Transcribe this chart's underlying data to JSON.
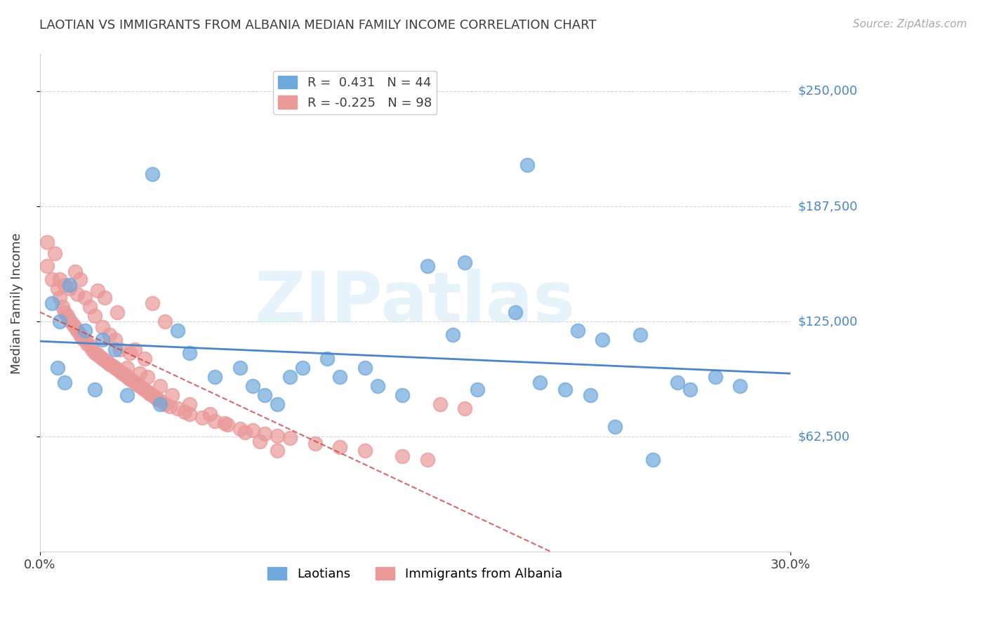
{
  "title": "LAOTIAN VS IMMIGRANTS FROM ALBANIA MEDIAN FAMILY INCOME CORRELATION CHART",
  "source": "Source: ZipAtlas.com",
  "xlabel": "",
  "ylabel": "Median Family Income",
  "xlim": [
    0.0,
    0.3
  ],
  "ylim": [
    0,
    270000
  ],
  "yticks": [
    62500,
    125000,
    187500,
    250000
  ],
  "ytick_labels": [
    "$62,500",
    "$125,000",
    "$187,500",
    "$250,000"
  ],
  "xticks": [
    0.0,
    0.3
  ],
  "xtick_labels": [
    "0.0%",
    "30.0%"
  ],
  "watermark": "ZIPatlas",
  "legend_blue_r": "0.431",
  "legend_blue_n": "44",
  "legend_pink_r": "-0.225",
  "legend_pink_n": "98",
  "blue_color": "#6fa8dc",
  "pink_color": "#ea9999",
  "trend_blue_color": "#4a86c8",
  "trend_pink_color": "#cc4444",
  "blue_scatter_x": [
    0.045,
    0.195,
    0.005,
    0.012,
    0.008,
    0.018,
    0.025,
    0.03,
    0.06,
    0.08,
    0.1,
    0.115,
    0.13,
    0.155,
    0.17,
    0.19,
    0.215,
    0.24,
    0.255,
    0.26,
    0.27,
    0.28,
    0.225,
    0.165,
    0.01,
    0.022,
    0.035,
    0.048,
    0.055,
    0.07,
    0.085,
    0.09,
    0.095,
    0.105,
    0.12,
    0.135,
    0.145,
    0.175,
    0.2,
    0.21,
    0.22,
    0.23,
    0.245,
    0.007
  ],
  "blue_scatter_y": [
    205000,
    210000,
    135000,
    145000,
    125000,
    120000,
    115000,
    110000,
    108000,
    100000,
    95000,
    105000,
    100000,
    155000,
    157000,
    130000,
    120000,
    118000,
    92000,
    88000,
    95000,
    90000,
    115000,
    118000,
    92000,
    88000,
    85000,
    80000,
    120000,
    95000,
    90000,
    85000,
    80000,
    100000,
    95000,
    90000,
    85000,
    88000,
    92000,
    88000,
    85000,
    68000,
    50000,
    100000
  ],
  "pink_scatter_x": [
    0.003,
    0.005,
    0.007,
    0.008,
    0.009,
    0.01,
    0.011,
    0.012,
    0.013,
    0.014,
    0.015,
    0.016,
    0.017,
    0.018,
    0.019,
    0.02,
    0.021,
    0.022,
    0.023,
    0.024,
    0.025,
    0.026,
    0.027,
    0.028,
    0.029,
    0.03,
    0.031,
    0.032,
    0.033,
    0.034,
    0.035,
    0.036,
    0.037,
    0.038,
    0.039,
    0.04,
    0.041,
    0.042,
    0.043,
    0.044,
    0.045,
    0.046,
    0.047,
    0.048,
    0.05,
    0.052,
    0.055,
    0.058,
    0.06,
    0.065,
    0.07,
    0.075,
    0.08,
    0.085,
    0.09,
    0.095,
    0.1,
    0.11,
    0.12,
    0.13,
    0.145,
    0.155,
    0.16,
    0.17,
    0.045,
    0.05,
    0.022,
    0.025,
    0.03,
    0.028,
    0.038,
    0.042,
    0.018,
    0.02,
    0.015,
    0.012,
    0.008,
    0.01,
    0.035,
    0.04,
    0.032,
    0.036,
    0.043,
    0.048,
    0.053,
    0.06,
    0.068,
    0.074,
    0.082,
    0.088,
    0.095,
    0.003,
    0.006,
    0.014,
    0.016,
    0.023,
    0.026,
    0.031
  ],
  "pink_scatter_y": [
    155000,
    148000,
    143000,
    138000,
    133000,
    130000,
    128000,
    126000,
    124000,
    122000,
    120000,
    118000,
    116000,
    115000,
    113000,
    112000,
    110000,
    108000,
    107000,
    106000,
    105000,
    104000,
    103000,
    102000,
    101000,
    100000,
    99000,
    98000,
    97000,
    96000,
    95000,
    94000,
    93000,
    92000,
    91000,
    90000,
    89000,
    88000,
    87000,
    86000,
    85000,
    84000,
    83000,
    82000,
    80000,
    79000,
    78000,
    76000,
    75000,
    73000,
    71000,
    69000,
    67000,
    66000,
    64000,
    63000,
    62000,
    59000,
    57000,
    55000,
    52000,
    50000,
    80000,
    78000,
    135000,
    125000,
    128000,
    122000,
    115000,
    118000,
    110000,
    105000,
    138000,
    133000,
    140000,
    143000,
    148000,
    145000,
    100000,
    97000,
    110000,
    108000,
    95000,
    90000,
    85000,
    80000,
    75000,
    70000,
    65000,
    60000,
    55000,
    168000,
    162000,
    152000,
    148000,
    142000,
    138000,
    130000
  ]
}
